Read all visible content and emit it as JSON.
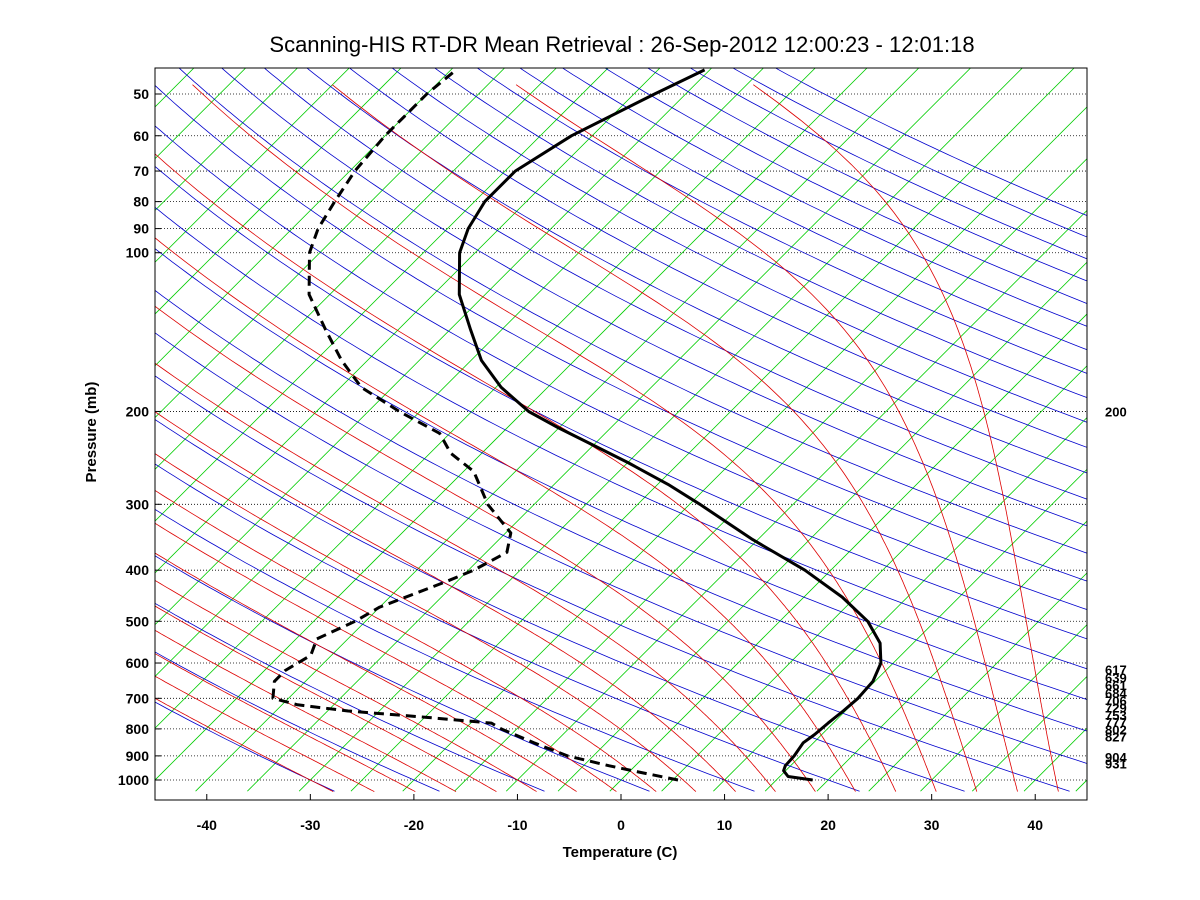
{
  "chart_data": {
    "type": "line",
    "chart_kind": "skew-T log-P thermodynamic diagram",
    "title": "Scanning-HIS RT-DR Mean Retrieval : 26-Sep-2012 12:00:23 - 12:01:18",
    "xlabel": "Temperature (C)",
    "ylabel": "Pressure (mb)",
    "xlim": [
      -45,
      45
    ],
    "ylim_pressure": [
      1050,
      44
    ],
    "y_scale": "log",
    "skew": "isotherms skewed 45 degrees",
    "x_ticks": [
      -40,
      -30,
      -20,
      -10,
      0,
      10,
      20,
      30,
      40
    ],
    "y_ticks": [
      50,
      60,
      70,
      80,
      90,
      100,
      200,
      300,
      400,
      500,
      600,
      700,
      800,
      900,
      1000
    ],
    "grid": "horizontal dotted isobars",
    "background_lines": [
      {
        "name": "isotherms",
        "color": "#00cc00"
      },
      {
        "name": "dry adiabats",
        "color": "#0000cc"
      },
      {
        "name": "moist adiabats",
        "color": "#dd0000"
      }
    ],
    "series": [
      {
        "style": "solid",
        "points": [
          [
            1000,
            18.5
          ],
          [
            985,
            15.8
          ],
          [
            960,
            14.8
          ],
          [
            940,
            14.5
          ],
          [
            900,
            14.4
          ],
          [
            850,
            14.0
          ],
          [
            820,
            14.3
          ],
          [
            780,
            14.5
          ],
          [
            740,
            14.8
          ],
          [
            700,
            15.0
          ],
          [
            650,
            14.8
          ],
          [
            600,
            13.8
          ],
          [
            550,
            11.8
          ],
          [
            500,
            8.5
          ],
          [
            450,
            3.7
          ],
          [
            400,
            -2.5
          ],
          [
            350,
            -10.5
          ],
          [
            300,
            -19.0
          ],
          [
            275,
            -24.0
          ],
          [
            250,
            -30.0
          ],
          [
            230,
            -35.5
          ],
          [
            215,
            -40.0
          ],
          [
            200,
            -44.5
          ],
          [
            180,
            -49.5
          ],
          [
            160,
            -54.0
          ],
          [
            140,
            -58.0
          ],
          [
            120,
            -62.5
          ],
          [
            100,
            -66.5
          ],
          [
            90,
            -68.0
          ],
          [
            80,
            -69.0
          ],
          [
            70,
            -69.0
          ],
          [
            60,
            -67.0
          ],
          [
            50,
            -63.0
          ],
          [
            45,
            -60.5
          ]
        ]
      },
      {
        "style": "dashed",
        "points": [
          [
            1000,
            5.5
          ],
          [
            970,
            1.5
          ],
          [
            940,
            -2.5
          ],
          [
            900,
            -7.5
          ],
          [
            850,
            -12.0
          ],
          [
            800,
            -16.5
          ],
          [
            780,
            -18.0
          ],
          [
            760,
            -25.0
          ],
          [
            740,
            -33.0
          ],
          [
            720,
            -38.5
          ],
          [
            700,
            -41.5
          ],
          [
            650,
            -43.0
          ],
          [
            620,
            -43.0
          ],
          [
            580,
            -42.0
          ],
          [
            540,
            -43.0
          ],
          [
            500,
            -41.0
          ],
          [
            470,
            -40.0
          ],
          [
            420,
            -36.0
          ],
          [
            400,
            -34.5
          ],
          [
            370,
            -33.0
          ],
          [
            340,
            -34.5
          ],
          [
            300,
            -39.5
          ],
          [
            260,
            -44.0
          ],
          [
            240,
            -48.0
          ],
          [
            220,
            -51.0
          ],
          [
            200,
            -57.0
          ],
          [
            180,
            -63.0
          ],
          [
            160,
            -67.5
          ],
          [
            140,
            -72.0
          ],
          [
            120,
            -77.0
          ],
          [
            100,
            -81.0
          ],
          [
            90,
            -82.5
          ],
          [
            80,
            -83.5
          ],
          [
            70,
            -84.5
          ],
          [
            60,
            -85.0
          ],
          [
            50,
            -85.0
          ],
          [
            45,
            -84.5
          ]
        ]
      }
    ],
    "right_labels": [
      "200",
      "617",
      "639",
      "661",
      "684",
      "706",
      "729",
      "753",
      "777",
      "802",
      "827",
      "904",
      "931"
    ]
  }
}
